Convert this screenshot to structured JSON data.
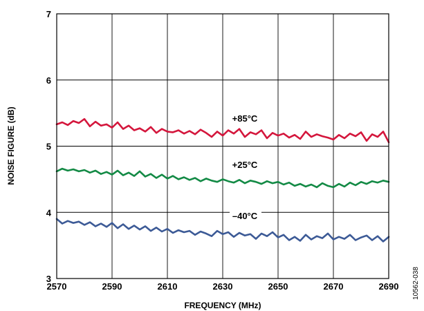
{
  "chart_data": {
    "type": "line",
    "title": "",
    "xlabel": "FREQUENCY (MHz)",
    "ylabel": "NOISE FIGURE (dB)",
    "xlim": [
      2570,
      2690
    ],
    "ylim": [
      3,
      7
    ],
    "x_ticks": [
      "2570",
      "2590",
      "2610",
      "2630",
      "2650",
      "2670",
      "2690"
    ],
    "y_ticks": [
      "3",
      "4",
      "5",
      "6",
      "7"
    ],
    "grid": true,
    "legend": "inline labels above each curve",
    "figure_id": "10562-038",
    "series": [
      {
        "name": "+85°C",
        "color": "#d4163c",
        "x": [
          2570,
          2572,
          2574,
          2576,
          2578,
          2580,
          2582,
          2584,
          2586,
          2588,
          2590,
          2592,
          2594,
          2596,
          2598,
          2600,
          2602,
          2604,
          2606,
          2608,
          2610,
          2612,
          2614,
          2616,
          2618,
          2620,
          2622,
          2624,
          2626,
          2628,
          2630,
          2632,
          2634,
          2636,
          2638,
          2640,
          2642,
          2644,
          2646,
          2648,
          2650,
          2652,
          2654,
          2656,
          2658,
          2660,
          2662,
          2664,
          2666,
          2668,
          2670,
          2672,
          2674,
          2676,
          2678,
          2680,
          2682,
          2684,
          2686,
          2688,
          2690
        ],
        "values": [
          5.33,
          5.36,
          5.32,
          5.38,
          5.35,
          5.41,
          5.3,
          5.37,
          5.31,
          5.33,
          5.28,
          5.36,
          5.26,
          5.31,
          5.24,
          5.27,
          5.22,
          5.29,
          5.2,
          5.26,
          5.22,
          5.21,
          5.24,
          5.19,
          5.23,
          5.18,
          5.25,
          5.2,
          5.14,
          5.22,
          5.16,
          5.24,
          5.19,
          5.26,
          5.14,
          5.21,
          5.18,
          5.24,
          5.12,
          5.2,
          5.16,
          5.19,
          5.13,
          5.17,
          5.11,
          5.22,
          5.14,
          5.18,
          5.15,
          5.13,
          5.1,
          5.17,
          5.12,
          5.19,
          5.15,
          5.21,
          5.08,
          5.18,
          5.14,
          5.22,
          5.06
        ]
      },
      {
        "name": "+25°C",
        "color": "#138a45",
        "x": [
          2570,
          2572,
          2574,
          2576,
          2578,
          2580,
          2582,
          2584,
          2586,
          2588,
          2590,
          2592,
          2594,
          2596,
          2598,
          2600,
          2602,
          2604,
          2606,
          2608,
          2610,
          2612,
          2614,
          2616,
          2618,
          2620,
          2622,
          2624,
          2626,
          2628,
          2630,
          2632,
          2634,
          2636,
          2638,
          2640,
          2642,
          2644,
          2646,
          2648,
          2650,
          2652,
          2654,
          2656,
          2658,
          2660,
          2662,
          2664,
          2666,
          2668,
          2670,
          2672,
          2674,
          2676,
          2678,
          2680,
          2682,
          2684,
          2686,
          2688,
          2690
        ],
        "values": [
          4.62,
          4.66,
          4.63,
          4.65,
          4.62,
          4.64,
          4.6,
          4.63,
          4.58,
          4.61,
          4.57,
          4.63,
          4.56,
          4.6,
          4.55,
          4.62,
          4.54,
          4.58,
          4.52,
          4.57,
          4.51,
          4.55,
          4.5,
          4.53,
          4.49,
          4.52,
          4.47,
          4.51,
          4.48,
          4.46,
          4.5,
          4.47,
          4.45,
          4.49,
          4.44,
          4.48,
          4.46,
          4.43,
          4.47,
          4.44,
          4.46,
          4.42,
          4.45,
          4.4,
          4.43,
          4.39,
          4.42,
          4.38,
          4.44,
          4.4,
          4.38,
          4.43,
          4.39,
          4.45,
          4.41,
          4.46,
          4.43,
          4.47,
          4.45,
          4.48,
          4.46
        ]
      },
      {
        "name": "–40°C",
        "color": "#3c5a96",
        "x": [
          2570,
          2572,
          2574,
          2576,
          2578,
          2580,
          2582,
          2584,
          2586,
          2588,
          2590,
          2592,
          2594,
          2596,
          2598,
          2600,
          2602,
          2604,
          2606,
          2608,
          2610,
          2612,
          2614,
          2616,
          2618,
          2620,
          2622,
          2624,
          2626,
          2628,
          2630,
          2632,
          2634,
          2636,
          2638,
          2640,
          2642,
          2644,
          2646,
          2648,
          2650,
          2652,
          2654,
          2656,
          2658,
          2660,
          2662,
          2664,
          2666,
          2668,
          2670,
          2672,
          2674,
          2676,
          2678,
          2680,
          2682,
          2684,
          2686,
          2688,
          2690
        ],
        "values": [
          3.9,
          3.83,
          3.87,
          3.84,
          3.86,
          3.81,
          3.85,
          3.79,
          3.83,
          3.78,
          3.84,
          3.76,
          3.82,
          3.75,
          3.8,
          3.74,
          3.79,
          3.72,
          3.77,
          3.71,
          3.75,
          3.69,
          3.73,
          3.7,
          3.72,
          3.66,
          3.71,
          3.68,
          3.64,
          3.72,
          3.67,
          3.7,
          3.63,
          3.69,
          3.65,
          3.67,
          3.6,
          3.68,
          3.64,
          3.7,
          3.62,
          3.66,
          3.58,
          3.63,
          3.57,
          3.66,
          3.59,
          3.64,
          3.61,
          3.68,
          3.59,
          3.63,
          3.6,
          3.66,
          3.58,
          3.62,
          3.65,
          3.58,
          3.64,
          3.56,
          3.63
        ]
      }
    ]
  }
}
